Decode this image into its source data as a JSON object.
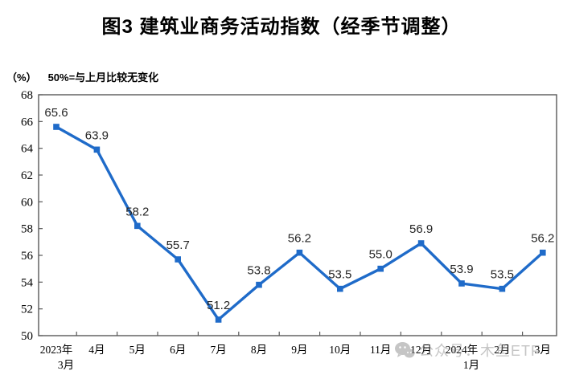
{
  "header": {
    "title": "图3 建筑业商务活动指数（经季节调整）"
  },
  "axis_note": {
    "unit": "（%）",
    "text": "50%=与上月比较无变化"
  },
  "watermark": {
    "icon": "wechat-icon",
    "text": "公众号：木鱼ETF",
    "color": "#8c8c8c"
  },
  "chart_data": {
    "type": "line",
    "title": "图3 建筑业商务活动指数（经季节调整）",
    "xlabel": "",
    "ylabel": "（%）",
    "note": "50%=与上月比较无变化",
    "categories": [
      "2023年\n3月",
      "4月",
      "5月",
      "6月",
      "7月",
      "8月",
      "9月",
      "10月",
      "11月",
      "12月",
      "2024年\n1月",
      "2月",
      "3月"
    ],
    "values": [
      65.6,
      63.9,
      58.2,
      55.7,
      51.2,
      53.8,
      56.2,
      53.5,
      55.0,
      56.9,
      53.9,
      53.5,
      56.2
    ],
    "ylim": [
      50,
      68
    ],
    "ytick_step": 2,
    "grid": false,
    "legend": "none",
    "data_labels": true,
    "label_decimals": 1,
    "line_color": "#1f6bc9",
    "marker": "square",
    "axis_color": "#595959",
    "label_color": "#262626"
  }
}
